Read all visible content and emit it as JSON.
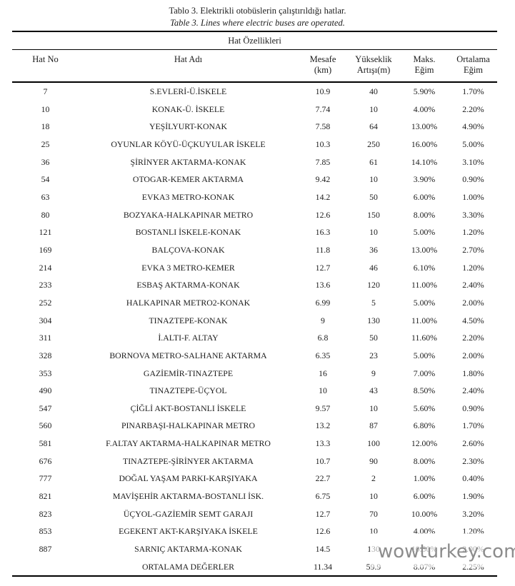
{
  "caption": {
    "turkish": "Tablo 3. Elektrikli otobüslerin çalıştırıldığı hatlar.",
    "english": "Table 3. Lines where electric buses are operated."
  },
  "table": {
    "group_header": "Hat Özellikleri",
    "columns": [
      {
        "label": "Hat No",
        "sub": ""
      },
      {
        "label": "Hat Adı",
        "sub": ""
      },
      {
        "label": "Mesafe",
        "sub": "(km)"
      },
      {
        "label": "Yükseklik",
        "sub": "Artışı(m)"
      },
      {
        "label": "Maks.",
        "sub": "Eğim"
      },
      {
        "label": "Ortalama",
        "sub": "Eğim"
      }
    ],
    "rows": [
      [
        "7",
        "S.EVLERİ-Ü.İSKELE",
        "10.9",
        "40",
        "5.90%",
        "1.70%"
      ],
      [
        "10",
        "KONAK-Ü. İSKELE",
        "7.74",
        "10",
        "4.00%",
        "2.20%"
      ],
      [
        "18",
        "YEŞİLYURT-KONAK",
        "7.58",
        "64",
        "13.00%",
        "4.90%"
      ],
      [
        "25",
        "OYUNLAR KÖYÜ-ÜÇKUYULAR İSKELE",
        "10.3",
        "250",
        "16.00%",
        "5.00%"
      ],
      [
        "36",
        "ŞİRİNYER AKTARMA-KONAK",
        "7.85",
        "61",
        "14.10%",
        "3.10%"
      ],
      [
        "54",
        "OTOGAR-KEMER AKTARMA",
        "9.42",
        "10",
        "3.90%",
        "0.90%"
      ],
      [
        "63",
        "EVKA3 METRO-KONAK",
        "14.2",
        "50",
        "6.00%",
        "1.00%"
      ],
      [
        "80",
        "BOZYAKA-HALKAPINAR METRO",
        "12.6",
        "150",
        "8.00%",
        "3.30%"
      ],
      [
        "121",
        "BOSTANLI İSKELE-KONAK",
        "16.3",
        "10",
        "5.00%",
        "1.20%"
      ],
      [
        "169",
        "BALÇOVA-KONAK",
        "11.8",
        "36",
        "13.00%",
        "2.70%"
      ],
      [
        "214",
        "EVKA 3 METRO-KEMER",
        "12.7",
        "46",
        "6.10%",
        "1.20%"
      ],
      [
        "233",
        "ESBAŞ AKTARMA-KONAK",
        "13.6",
        "120",
        "11.00%",
        "2.40%"
      ],
      [
        "252",
        "HALKAPINAR METRO2-KONAK",
        "6.99",
        "5",
        "5.00%",
        "2.00%"
      ],
      [
        "304",
        "TINAZTEPE-KONAK",
        "9",
        "130",
        "11.00%",
        "4.50%"
      ],
      [
        "311",
        "İ.ALTI-F. ALTAY",
        "6.8",
        "50",
        "11.60%",
        "2.20%"
      ],
      [
        "328",
        "BORNOVA METRO-SALHANE AKTARMA",
        "6.35",
        "23",
        "5.00%",
        "2.00%"
      ],
      [
        "353",
        "GAZİEMİR-TINAZTEPE",
        "16",
        "9",
        "7.00%",
        "1.80%"
      ],
      [
        "490",
        "TINAZTEPE-ÜÇYOL",
        "10",
        "43",
        "8.50%",
        "2.40%"
      ],
      [
        "547",
        "ÇİĞLİ AKT-BOSTANLI İSKELE",
        "9.57",
        "10",
        "5.60%",
        "0.90%"
      ],
      [
        "560",
        "PINARBAŞI-HALKAPINAR METRO",
        "13.2",
        "87",
        "6.80%",
        "1.70%"
      ],
      [
        "581",
        "F.ALTAY AKTARMA-HALKAPINAR METRO",
        "13.3",
        "100",
        "12.00%",
        "2.60%"
      ],
      [
        "676",
        "TINAZTEPE-ŞİRİNYER AKTARMA",
        "10.7",
        "90",
        "8.00%",
        "2.30%"
      ],
      [
        "777",
        "DOĞAL YAŞAM PARKI-KARŞIYAKA",
        "22.7",
        "2",
        "1.00%",
        "0.40%"
      ],
      [
        "821",
        "MAVİŞEHİR AKTARMA-BOSTANLI İSK.",
        "6.75",
        "10",
        "6.00%",
        "1.90%"
      ],
      [
        "823",
        "ÜÇYOL-GAZİEMİR SEMT GARAJI",
        "12.7",
        "70",
        "10.00%",
        "3.20%"
      ],
      [
        "853",
        "EGEKENT AKT-KARŞIYAKA İSKELE",
        "12.6",
        "10",
        "4.00%",
        "1.20%"
      ],
      [
        "887",
        "SARNIÇ AKTARMA-KONAK",
        "14.5",
        "130",
        "10.50%",
        "2.00%"
      ]
    ],
    "average_row": [
      "",
      "ORTALAMA DEĞERLER",
      "11.34",
      "59.9",
      "8.07%",
      "2.25%"
    ]
  },
  "watermark": {
    "text": "wowturkey.com",
    "color": "#8c8c8c"
  }
}
